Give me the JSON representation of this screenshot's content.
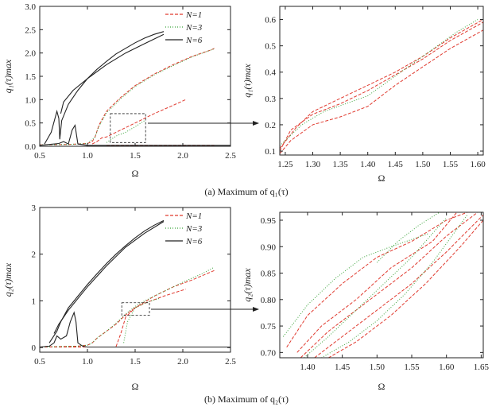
{
  "colors": {
    "N1": "#e03a2f",
    "N3": "#3aa33a",
    "N6": "#222222",
    "axis": "#222222"
  },
  "caption_a": "(a) Maximum of q₁(τ)",
  "caption_b": "(b) Maximum of q₂(τ)",
  "chart_data": [
    {
      "type": "line",
      "panel": "a-main",
      "xlabel": "Ω",
      "ylabel": "q₁(τ)max",
      "xlim": [
        0.5,
        2.5
      ],
      "ylim": [
        0,
        3.0
      ],
      "xticks": [
        "0.5",
        "1.0",
        "1.5",
        "2.0",
        "2.5"
      ],
      "yticks": [
        "0.0",
        "0.5",
        "1.0",
        "1.5",
        "2.0",
        "2.5",
        "3.0"
      ],
      "legend": "top-right",
      "series": [
        {
          "name": "N=1",
          "style": "dashed",
          "color": "#e03a2f",
          "lines": [
            {
              "x": [
                0.5,
                0.8,
                1.0,
                1.05,
                1.08,
                1.12,
                1.2,
                1.35,
                1.5,
                1.7,
                1.9,
                2.1,
                2.3,
                2.33
              ],
              "y": [
                0.03,
                0.04,
                0.06,
                0.1,
                0.2,
                0.45,
                0.75,
                1.05,
                1.3,
                1.55,
                1.75,
                1.93,
                2.07,
                2.1
              ]
            },
            {
              "x": [
                1.05,
                1.1,
                1.15,
                1.2,
                1.3,
                1.5,
                1.7,
                1.9,
                2.03
              ],
              "y": [
                0.05,
                0.1,
                0.18,
                0.2,
                0.3,
                0.5,
                0.7,
                0.88,
                1.0
              ]
            },
            {
              "x": [
                1.2,
                1.5,
                1.8,
                2.1,
                2.33
              ],
              "y": [
                0.02,
                0.02,
                0.02,
                0.02,
                0.02
              ]
            }
          ]
        },
        {
          "name": "N=3",
          "style": "dotted",
          "color": "#3aa33a",
          "lines": [
            {
              "x": [
                0.5,
                0.8,
                1.0,
                1.08,
                1.12,
                1.2,
                1.35,
                1.5,
                1.7,
                1.9,
                2.1,
                2.33
              ],
              "y": [
                0.03,
                0.04,
                0.06,
                0.2,
                0.42,
                0.72,
                1.02,
                1.28,
                1.53,
                1.73,
                1.92,
                2.09
              ]
            },
            {
              "x": [
                1.2,
                1.25,
                1.3,
                1.4,
                1.5,
                1.6
              ],
              "y": [
                0.08,
                0.15,
                0.22,
                0.3,
                0.42,
                0.55
              ]
            }
          ]
        },
        {
          "name": "N=6",
          "style": "solid",
          "color": "#222222",
          "lines": [
            {
              "x": [
                0.55,
                0.62,
                0.68,
                0.7,
                0.71,
                0.73,
                0.8,
                0.9,
                1.0,
                1.1,
                1.2,
                1.3,
                1.4,
                1.5,
                1.6,
                1.7,
                1.8
              ],
              "y": [
                0.05,
                0.3,
                0.75,
                0.6,
                0.15,
                0.55,
                0.9,
                1.2,
                1.45,
                1.65,
                1.82,
                1.98,
                2.1,
                2.22,
                2.32,
                2.4,
                2.46
              ]
            },
            {
              "x": [
                0.72,
                0.75,
                0.85,
                1.0,
                1.2,
                1.4,
                1.6,
                1.8
              ],
              "y": [
                0.7,
                0.95,
                1.2,
                1.45,
                1.75,
                2.0,
                2.2,
                2.4
              ]
            },
            {
              "x": [
                0.5,
                0.6,
                0.7,
                0.75,
                0.8,
                0.84,
                0.87,
                0.9,
                1.0,
                1.5,
                2.0,
                2.5
              ],
              "y": [
                0.02,
                0.04,
                0.06,
                0.1,
                0.05,
                0.35,
                0.45,
                0.05,
                0.02,
                0.02,
                0.02,
                0.02
              ]
            }
          ]
        }
      ],
      "inset_box": {
        "x": [
          1.24,
          1.61
        ],
        "y": [
          0.08,
          0.7
        ]
      }
    },
    {
      "type": "line",
      "panel": "a-zoom",
      "xlabel": "Ω",
      "ylabel": "q₁(τ)max",
      "xlim": [
        1.24,
        1.61
      ],
      "ylim": [
        0.085,
        0.65
      ],
      "xticks": [
        "1.25",
        "1.30",
        "1.35",
        "1.40",
        "1.45",
        "1.50",
        "1.55",
        "1.60"
      ],
      "yticks": [
        "0.1",
        "0.2",
        "0.3",
        "0.4",
        "0.5",
        "0.6"
      ],
      "series": [
        {
          "name": "N=1",
          "style": "dashed",
          "color": "#e03a2f",
          "lines": [
            {
              "x": [
                1.24,
                1.26,
                1.3,
                1.35,
                1.4,
                1.45,
                1.5,
                1.55,
                1.61
              ],
              "y": [
                0.1,
                0.18,
                0.24,
                0.28,
                0.33,
                0.39,
                0.45,
                0.52,
                0.59
              ]
            },
            {
              "x": [
                1.24,
                1.26,
                1.3,
                1.35,
                1.4,
                1.45,
                1.5,
                1.55,
                1.61
              ],
              "y": [
                0.09,
                0.14,
                0.2,
                0.23,
                0.27,
                0.35,
                0.42,
                0.49,
                0.56
              ]
            },
            {
              "x": [
                1.24,
                1.27,
                1.3,
                1.35,
                1.4,
                1.45,
                1.5,
                1.55,
                1.61
              ],
              "y": [
                0.11,
                0.19,
                0.25,
                0.3,
                0.35,
                0.4,
                0.46,
                0.53,
                0.6
              ]
            }
          ]
        },
        {
          "name": "N=3",
          "style": "dotted",
          "color": "#3aa33a",
          "lines": [
            {
              "x": [
                1.24,
                1.28,
                1.32,
                1.36,
                1.4,
                1.44,
                1.48,
                1.52,
                1.56,
                1.6
              ],
              "y": [
                0.12,
                0.2,
                0.25,
                0.28,
                0.31,
                0.37,
                0.43,
                0.49,
                0.55,
                0.6
              ]
            }
          ]
        }
      ]
    },
    {
      "type": "line",
      "panel": "b-main",
      "xlabel": "Ω",
      "ylabel": "q₂(τ)max",
      "xlim": [
        0.5,
        2.5
      ],
      "ylim": [
        -0.1,
        3.0
      ],
      "xticks": [
        "0.5",
        "1.0",
        "1.5",
        "2.0",
        "2.5"
      ],
      "yticks": [
        "0",
        "1",
        "2",
        "3"
      ],
      "legend": "top-right",
      "series": [
        {
          "name": "N=1",
          "style": "dashed",
          "color": "#e03a2f",
          "lines": [
            {
              "x": [
                0.5,
                0.9,
                1.0,
                1.05,
                1.1,
                1.2,
                1.3,
                1.4,
                1.5,
                1.6,
                1.8,
                2.03
              ],
              "y": [
                0.01,
                0.03,
                0.05,
                0.1,
                0.2,
                0.35,
                0.5,
                0.7,
                0.85,
                0.95,
                1.1,
                1.25
              ]
            },
            {
              "x": [
                1.3,
                1.35,
                1.4,
                1.5,
                1.7,
                1.9,
                2.1,
                2.33
              ],
              "y": [
                0.02,
                0.3,
                0.65,
                0.85,
                1.1,
                1.3,
                1.45,
                1.65
              ]
            },
            {
              "x": [
                0.5,
                1.0,
                1.5,
                2.0,
                2.33
              ],
              "y": [
                0.01,
                0.01,
                0.01,
                0.01,
                0.01
              ]
            }
          ]
        },
        {
          "name": "N=3",
          "style": "dotted",
          "color": "#3aa33a",
          "lines": [
            {
              "x": [
                0.5,
                0.9,
                1.0,
                1.05,
                1.1,
                1.2,
                1.3,
                1.4,
                1.5,
                1.6,
                1.8,
                2.0,
                2.2,
                2.33
              ],
              "y": [
                0.01,
                0.03,
                0.05,
                0.1,
                0.2,
                0.35,
                0.52,
                0.72,
                0.88,
                1.0,
                1.2,
                1.4,
                1.58,
                1.72
              ]
            },
            {
              "x": [
                1.38,
                1.42,
                1.5,
                1.6,
                1.75
              ],
              "y": [
                0.1,
                0.55,
                0.85,
                0.95,
                1.05
              ]
            }
          ]
        },
        {
          "name": "N=6",
          "style": "solid",
          "color": "#222222",
          "lines": [
            {
              "x": [
                0.6,
                0.68,
                0.72,
                0.8,
                0.9,
                1.0,
                1.1,
                1.2,
                1.3,
                1.4,
                1.5,
                1.6,
                1.7,
                1.8
              ],
              "y": [
                0.1,
                0.35,
                0.55,
                0.85,
                1.1,
                1.35,
                1.58,
                1.8,
                2.0,
                2.18,
                2.35,
                2.5,
                2.62,
                2.72
              ]
            },
            {
              "x": [
                0.65,
                0.7,
                0.8,
                1.0,
                1.2,
                1.4,
                1.6,
                1.8
              ],
              "y": [
                0.3,
                0.5,
                0.8,
                1.3,
                1.75,
                2.15,
                2.45,
                2.7
              ]
            },
            {
              "x": [
                0.5,
                0.6,
                0.65,
                0.68,
                0.72,
                0.78,
                0.82,
                0.86,
                0.88,
                0.9,
                0.95,
                1.0,
                1.5,
                2.0,
                2.5
              ],
              "y": [
                0.01,
                0.03,
                0.1,
                0.25,
                0.18,
                0.25,
                0.55,
                0.75,
                0.55,
                0.1,
                0.03,
                0.01,
                0.01,
                0.01,
                0.01
              ]
            }
          ]
        }
      ],
      "inset_box": {
        "x": [
          1.36,
          1.65
        ],
        "y": [
          0.69,
          0.96
        ]
      }
    },
    {
      "type": "line",
      "panel": "b-zoom",
      "xlabel": "Ω",
      "ylabel": "q₂(τ)max",
      "xlim": [
        1.36,
        1.653
      ],
      "ylim": [
        0.69,
        0.965
      ],
      "xticks": [
        "1.40",
        "1.45",
        "1.50",
        "1.55",
        "1.60",
        "1.65"
      ],
      "yticks": [
        "0.70",
        "0.75",
        "0.80",
        "0.85",
        "0.90",
        "0.95"
      ],
      "series": [
        {
          "name": "N=1",
          "style": "dashed",
          "color": "#e03a2f",
          "lines": [
            {
              "x": [
                1.37,
                1.4,
                1.45,
                1.5,
                1.55,
                1.6,
                1.63
              ],
              "y": [
                0.71,
                0.77,
                0.83,
                0.88,
                0.91,
                0.95,
                0.965
              ]
            },
            {
              "x": [
                1.39,
                1.43,
                1.47,
                1.51,
                1.55,
                1.6,
                1.645
              ],
              "y": [
                0.69,
                0.74,
                0.78,
                0.82,
                0.86,
                0.92,
                0.965
              ]
            },
            {
              "x": [
                1.41,
                1.45,
                1.5,
                1.55,
                1.6,
                1.653
              ],
              "y": [
                0.69,
                0.73,
                0.78,
                0.83,
                0.89,
                0.96
              ]
            },
            {
              "x": [
                1.43,
                1.47,
                1.52,
                1.57,
                1.62,
                1.653
              ],
              "y": [
                0.69,
                0.72,
                0.77,
                0.83,
                0.9,
                0.95
              ]
            },
            {
              "x": [
                1.385,
                1.42,
                1.47,
                1.52,
                1.58,
                1.615
              ],
              "y": [
                0.7,
                0.75,
                0.8,
                0.86,
                0.91,
                0.965
              ]
            }
          ]
        },
        {
          "name": "N=3",
          "style": "dotted",
          "color": "#3aa33a",
          "lines": [
            {
              "x": [
                1.365,
                1.4,
                1.44,
                1.48,
                1.52,
                1.575
              ],
              "y": [
                0.73,
                0.79,
                0.84,
                0.88,
                0.9,
                0.925
              ]
            },
            {
              "x": [
                1.395,
                1.43,
                1.47,
                1.51,
                1.55,
                1.6
              ],
              "y": [
                0.69,
                0.73,
                0.78,
                0.83,
                0.88,
                0.955
              ]
            },
            {
              "x": [
                1.42,
                1.46,
                1.5,
                1.54,
                1.58,
                1.63
              ],
              "y": [
                0.69,
                0.72,
                0.76,
                0.81,
                0.87,
                0.96
              ]
            },
            {
              "x": [
                1.5,
                1.53,
                1.56,
                1.59
              ],
              "y": [
                0.87,
                0.91,
                0.94,
                0.965
              ]
            }
          ]
        }
      ]
    }
  ]
}
